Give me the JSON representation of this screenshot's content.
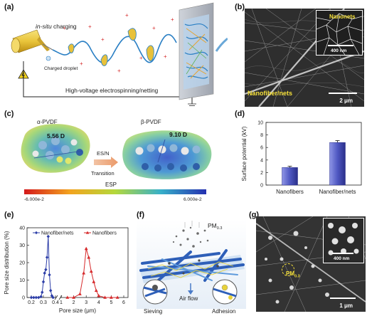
{
  "panels": {
    "a": {
      "label": "(a)",
      "in_situ": "in-situ",
      "charging": " charging",
      "droplet": "Charged droplet",
      "title": "High-voltage electrospinning/netting"
    },
    "b": {
      "label": "(b)",
      "inset_label": "Nanonets",
      "inset_scale": "400 nm",
      "main_label": "Nanofiber/nets",
      "scale": "2 μm"
    },
    "c": {
      "label": "(c)",
      "alpha_name": "α-PVDF",
      "alpha_dipole": "5.56 D",
      "beta_name": "β-PVDF",
      "beta_dipole": "9.10 D",
      "arrow_top": "ES/N",
      "arrow_bottom": "Transition",
      "esp_label": "ESP",
      "esp_min": "-6.000e-2",
      "esp_max": "6.000e-2"
    },
    "f": {
      "label": "(f)",
      "pm": "PM",
      "pm_sub": "0.3",
      "air_flow": "Air flow",
      "sieving": "Sieving",
      "adhesion": "Adhesion"
    },
    "g": {
      "label": "(g)",
      "pm": "PM",
      "pm_sub": "0.3",
      "inset_scale": "400 nm",
      "scale": "1 μm"
    }
  },
  "chart_data": [
    {
      "panel": "(d)",
      "type": "bar",
      "categories": [
        "Nanofibers",
        "Nanofiber/nets"
      ],
      "values": [
        2.8,
        6.8
      ],
      "errors": [
        0.2,
        0.3
      ],
      "ylabel": "Surface potential (kV)",
      "ylim": [
        0,
        10
      ],
      "yticks": [
        "0",
        "2",
        "4",
        "6",
        "8",
        "10"
      ],
      "bar_color": "#4f58c2"
    },
    {
      "panel": "(e)",
      "type": "line",
      "xlabel": "Pore size (μm)",
      "ylabel": "Pore size distribution (%)",
      "ylim": [
        0,
        40
      ],
      "yticks": [
        "0",
        "10",
        "20",
        "30",
        "40"
      ],
      "xticks_left": [
        "0.2",
        "0.3",
        "0.4"
      ],
      "xticks_right": [
        "1",
        "2",
        "3",
        "4",
        "5",
        "6"
      ],
      "x_break": true,
      "series": [
        {
          "name": "Nanofiber/nets",
          "color": "#2d3ea8",
          "marker": "diamond",
          "x": [
            0.2,
            0.22,
            0.24,
            0.26,
            0.28,
            0.29,
            0.3,
            0.31,
            0.32,
            0.33,
            0.34,
            0.35,
            0.36,
            0.37,
            0.38
          ],
          "y": [
            0,
            0,
            0,
            0,
            0.5,
            3,
            9,
            14,
            16,
            23,
            35,
            13,
            4,
            1,
            0
          ]
        },
        {
          "name": "Nanofibers",
          "color": "#d6282a",
          "marker": "triangle",
          "x": [
            1.5,
            2.0,
            2.5,
            2.8,
            3.0,
            3.2,
            3.4,
            3.6,
            3.8,
            4.0,
            4.5,
            5.0,
            5.5
          ],
          "y": [
            0,
            0,
            2,
            14,
            28,
            23,
            15,
            9,
            4,
            1,
            0,
            0,
            0
          ]
        }
      ]
    }
  ]
}
